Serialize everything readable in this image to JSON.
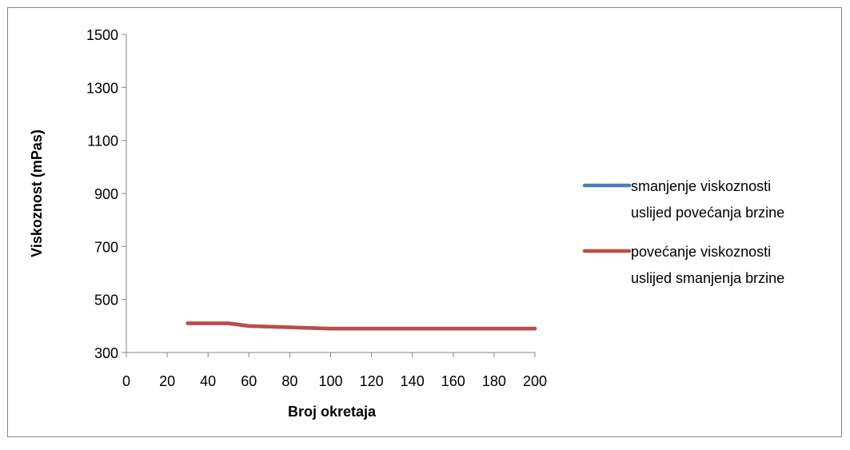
{
  "chart_data": {
    "type": "line",
    "title": "",
    "xlabel": "Broj okretaja",
    "ylabel": "Viskoznost (mPas)",
    "xlim": [
      0,
      200
    ],
    "ylim": [
      300,
      1500
    ],
    "x_ticks": [
      0,
      20,
      40,
      60,
      80,
      100,
      120,
      140,
      160,
      180,
      200
    ],
    "y_ticks": [
      300,
      500,
      700,
      900,
      1100,
      1300,
      1500
    ],
    "grid": false,
    "legend_position": "right",
    "series": [
      {
        "name": "smanjenje viskoznosti uslijed povećanja brzine",
        "legend_lines": [
          "smanjenje viskoznosti",
          "uslijed povećanja brzine"
        ],
        "color": "#4a7ebb",
        "x": [
          30,
          50,
          60,
          80,
          100,
          200
        ],
        "y": [
          410,
          410,
          400,
          395,
          390,
          390
        ]
      },
      {
        "name": "povećanje viskoznosti uslijed smanjenja brzine",
        "legend_lines": [
          "povećanje viskoznosti",
          "uslijed smanjenja brzine"
        ],
        "color": "#be4b48",
        "x": [
          30,
          50,
          60,
          80,
          100,
          200
        ],
        "y": [
          410,
          410,
          400,
          395,
          390,
          390
        ]
      }
    ]
  }
}
